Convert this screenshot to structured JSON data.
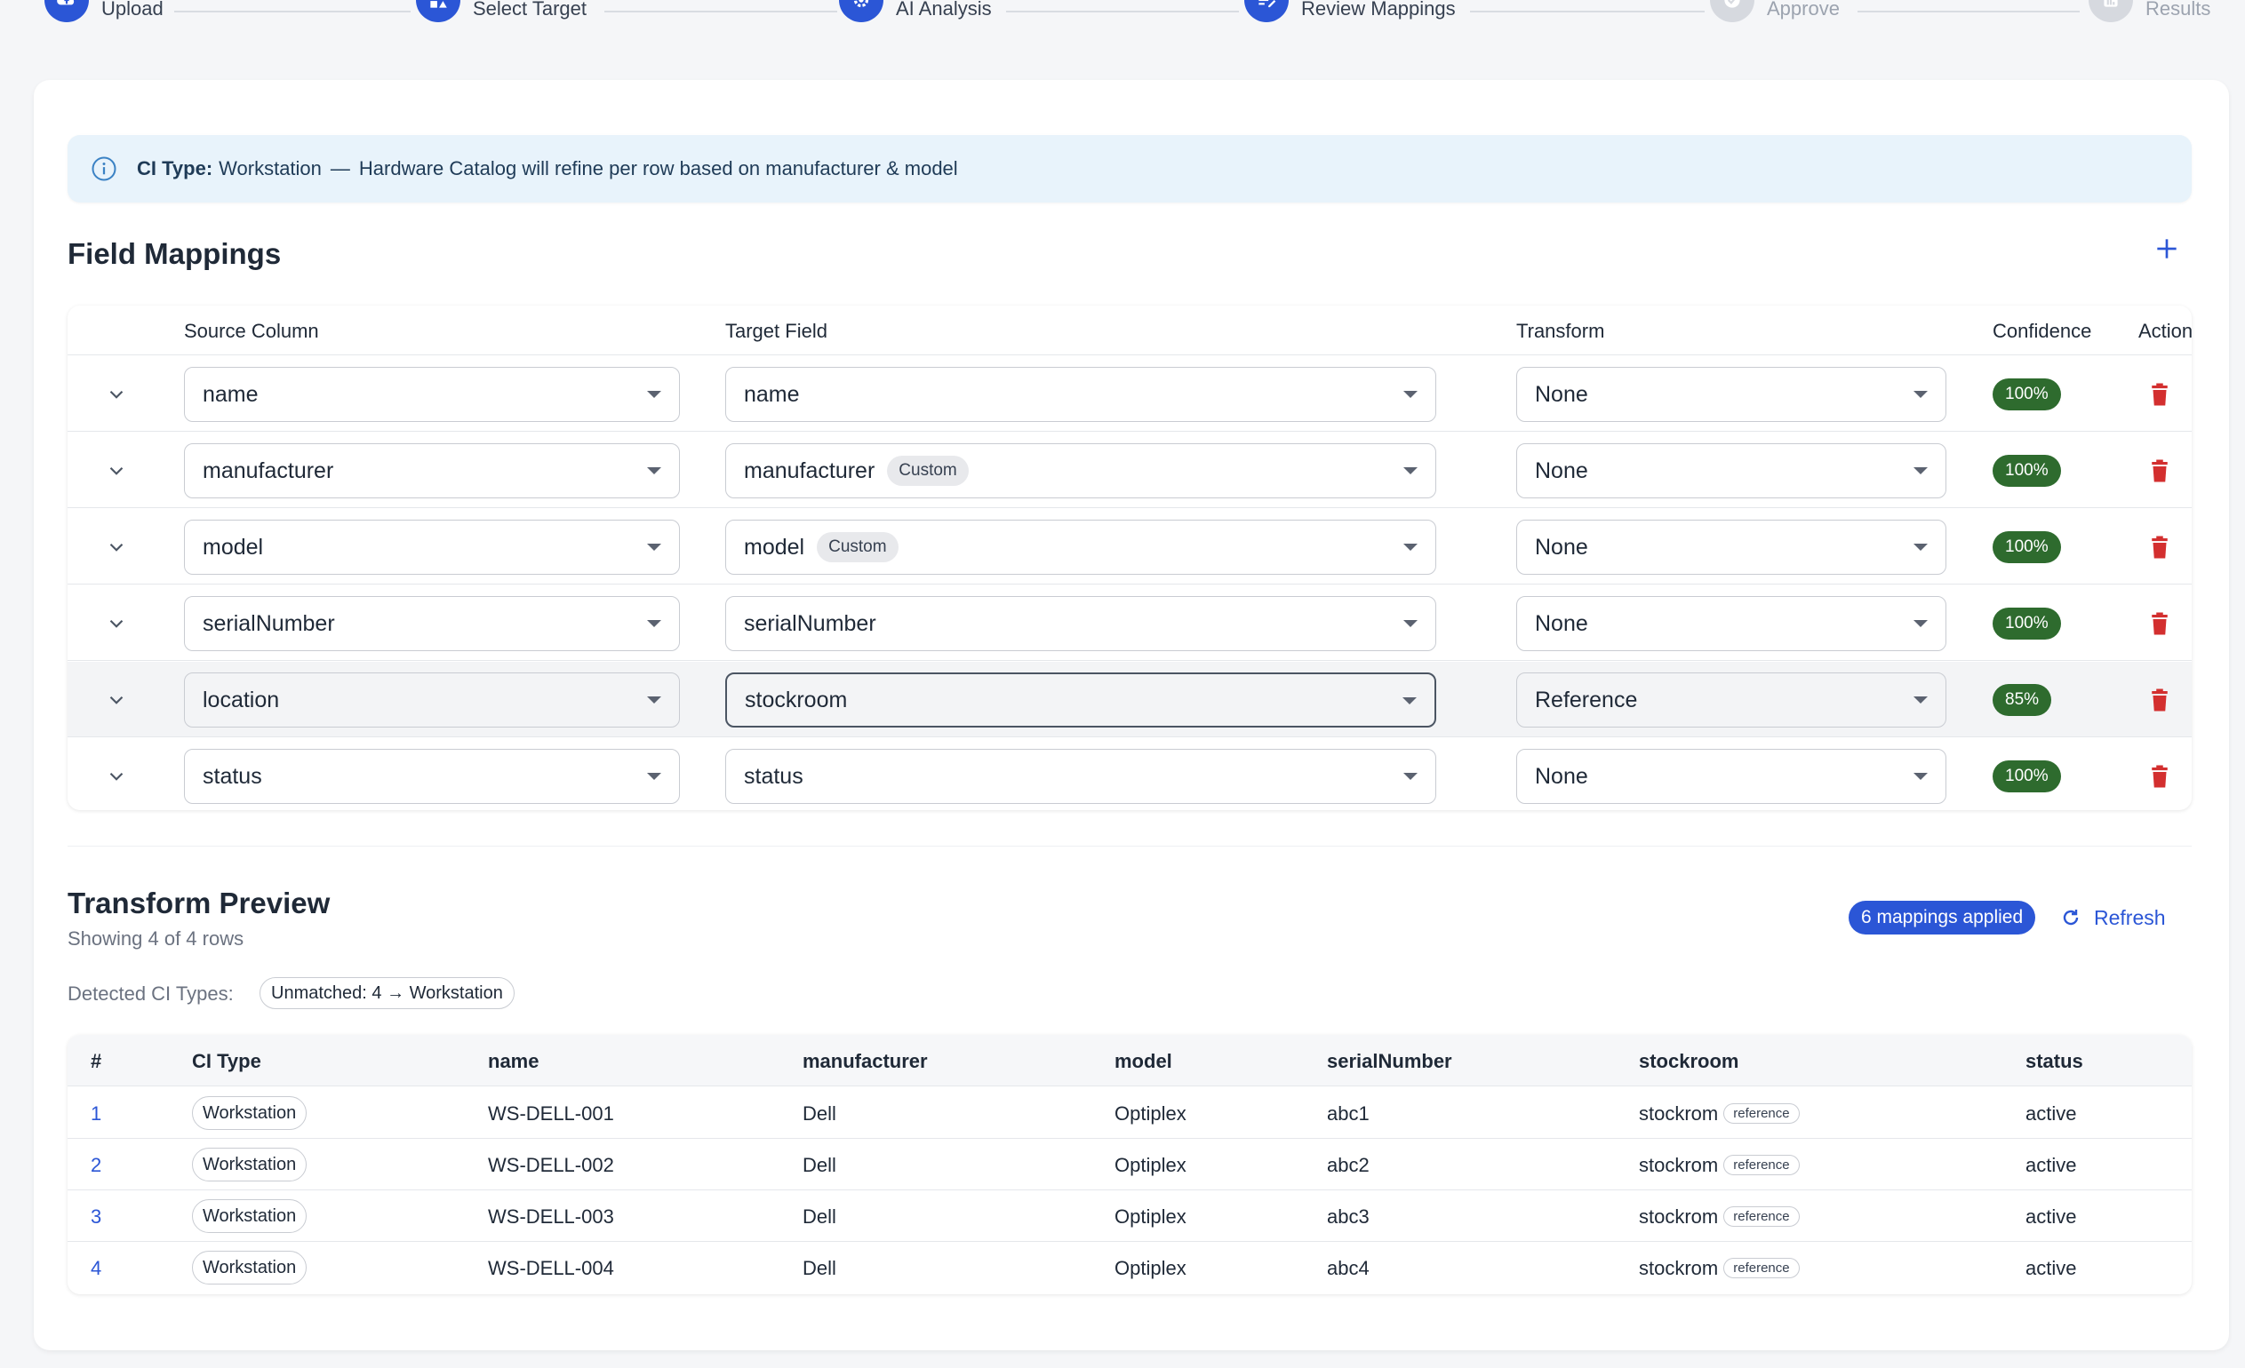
{
  "stepper": {
    "steps": [
      {
        "label": "Upload",
        "icon": "upload-cloud-icon",
        "active": true
      },
      {
        "label": "Select Target",
        "icon": "shapes-icon",
        "active": true
      },
      {
        "label": "AI Analysis",
        "icon": "gear-icon",
        "active": true
      },
      {
        "label": "Review Mappings",
        "icon": "edit-list-icon",
        "active": true
      },
      {
        "label": "Approve",
        "icon": "check-circle-icon",
        "active": false
      },
      {
        "label": "Results",
        "icon": "bar-chart-icon",
        "active": false
      }
    ]
  },
  "banner": {
    "label": "CI Type:",
    "value": "Workstation",
    "separator": "—",
    "message": "Hardware Catalog will refine per row based on manufacturer & model"
  },
  "field_mappings": {
    "title": "Field Mappings",
    "columns": {
      "source": "Source Column",
      "target": "Target Field",
      "transform": "Transform",
      "confidence": "Confidence",
      "actions": "Actions"
    },
    "rows": [
      {
        "source": "name",
        "target": "name",
        "target_tag": "",
        "transform": "None",
        "confidence": "100%"
      },
      {
        "source": "manufacturer",
        "target": "manufacturer",
        "target_tag": "Custom",
        "transform": "None",
        "confidence": "100%"
      },
      {
        "source": "model",
        "target": "model",
        "target_tag": "Custom",
        "transform": "None",
        "confidence": "100%"
      },
      {
        "source": "serialNumber",
        "target": "serialNumber",
        "target_tag": "",
        "transform": "None",
        "confidence": "100%"
      },
      {
        "source": "location",
        "target": "stockroom",
        "target_tag": "",
        "transform": "Reference",
        "confidence": "85%"
      },
      {
        "source": "status",
        "target": "status",
        "target_tag": "",
        "transform": "None",
        "confidence": "100%"
      }
    ]
  },
  "transform_preview": {
    "title": "Transform Preview",
    "subtitle": "Showing 4 of 4 rows",
    "applied_badge": "6 mappings applied",
    "refresh_label": "Refresh",
    "detected_label": "Detected CI Types:",
    "detected_chip": "Unmatched: 4 → Workstation",
    "columns": [
      "#",
      "CI Type",
      "name",
      "manufacturer",
      "model",
      "serialNumber",
      "stockroom",
      "status"
    ],
    "reference_tag": "reference",
    "rows": [
      {
        "idx": "1",
        "ci_type": "Workstation",
        "name": "WS-DELL-001",
        "manufacturer": "Dell",
        "model": "Optiplex",
        "serial": "abc1",
        "stockroom": "stockrom",
        "status": "active"
      },
      {
        "idx": "2",
        "ci_type": "Workstation",
        "name": "WS-DELL-002",
        "manufacturer": "Dell",
        "model": "Optiplex",
        "serial": "abc2",
        "stockroom": "stockrom",
        "status": "active"
      },
      {
        "idx": "3",
        "ci_type": "Workstation",
        "name": "WS-DELL-003",
        "manufacturer": "Dell",
        "model": "Optiplex",
        "serial": "abc3",
        "stockroom": "stockrom",
        "status": "active"
      },
      {
        "idx": "4",
        "ci_type": "Workstation",
        "name": "WS-DELL-004",
        "manufacturer": "Dell",
        "model": "Optiplex",
        "serial": "abc4",
        "stockroom": "stockrom",
        "status": "active"
      }
    ]
  },
  "colors": {
    "accent": "#2b56d6",
    "confidence_badge": "#2e6b2e",
    "delete": "#d32f2f",
    "banner_bg": "#e8f3fb"
  }
}
